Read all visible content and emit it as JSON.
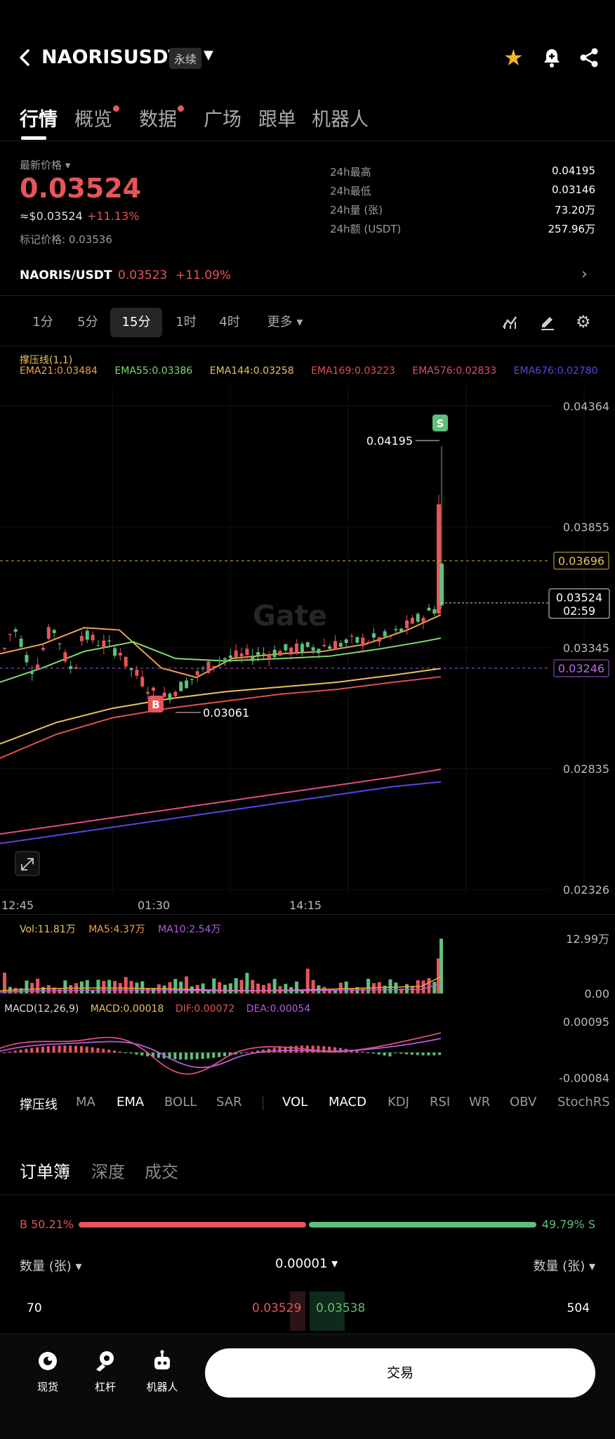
{
  "header": {
    "pair": "NAORISUSDT",
    "type_badge": "永续"
  },
  "tabs": [
    {
      "label": "行情"
    },
    {
      "label": "概览"
    },
    {
      "label": "数据"
    },
    {
      "label": "广场"
    },
    {
      "label": "跟单"
    },
    {
      "label": "机器人"
    }
  ],
  "ticker": {
    "latest_label": "最新价格",
    "last_price": "0.03524",
    "usd_value": "≈$0.03524",
    "change": "+11.13%",
    "mark_label": "标记价格:",
    "mark_price": "0.03536",
    "stats": [
      {
        "k": "24h最高",
        "v": "0.04195"
      },
      {
        "k": "24h最低",
        "v": "0.03146"
      },
      {
        "k": "24h量 (张)",
        "v": "73.20万"
      },
      {
        "k": "24h额 (USDT)",
        "v": "257.96万"
      }
    ],
    "spot_pair": "NAORIS/USDT",
    "spot_price": "0.03523",
    "spot_change": "+11.09%"
  },
  "timeframes": [
    "1分",
    "5分",
    "15分",
    "1时",
    "4时",
    "更多"
  ],
  "active_timeframe": "15分",
  "indicator_header": {
    "name": "撑压线(1,1)",
    "emas": [
      {
        "label": "EMA21:0.03484",
        "color": "#f0a24a"
      },
      {
        "label": "EMA55:0.03386",
        "color": "#7fdc6f"
      },
      {
        "label": "EMA144:0.03258",
        "color": "#e8c25a"
      },
      {
        "label": "EMA169:0.03223",
        "color": "#e0504e"
      },
      {
        "label": "EMA576:0.02833",
        "color": "#e34b7f"
      },
      {
        "label": "EMA676:0.02780",
        "color": "#5a44e6"
      }
    ]
  },
  "chart_data": {
    "type": "candlestick",
    "y_axis_ticks": [
      "0.04364",
      "0.03855",
      "0.03345",
      "0.02835",
      "0.02326"
    ],
    "x_axis_ticks": [
      "12:45",
      "01:30",
      "14:15"
    ],
    "high_label": "0.04195",
    "low_label": "0.03061",
    "current_price": "0.03524",
    "countdown": "02:59",
    "price_line_yellow": "0.03696",
    "price_line_purple": "0.03246",
    "buy_marker": "B",
    "sell_marker": "S",
    "ema_colors": {
      "ema21": "#f0a24a",
      "ema55": "#7fdc6f",
      "ema144": "#e8c25a",
      "ema169": "#e0504e",
      "ema576": "#e34b7f",
      "ema676": "#5a44e6"
    },
    "up_color": "#e5555a",
    "down_color": "#5fbf7d"
  },
  "volume": {
    "vol_label": "Vol:11.81万",
    "ma5_label": "MA5:4.37万",
    "ma10_label": "MA10:2.54万",
    "axis_top": "12.99万",
    "axis_bottom": "0.00"
  },
  "macd": {
    "label": "MACD(12,26,9)",
    "macd_val": "MACD:0.00018",
    "dif": "DIF:0.00072",
    "dea": "DEA:0.00054",
    "axis_top": "0.00095",
    "axis_bottom": "-0.00084"
  },
  "indicator_tabs": [
    {
      "label": "撑压线",
      "on": true
    },
    {
      "label": "MA",
      "on": false
    },
    {
      "label": "EMA",
      "on": true
    },
    {
      "label": "BOLL",
      "on": false
    },
    {
      "label": "SAR",
      "on": false
    },
    {
      "label": "VOL",
      "on": true
    },
    {
      "label": "MACD",
      "on": true
    },
    {
      "label": "KDJ",
      "on": false
    },
    {
      "label": "RSI",
      "on": false
    },
    {
      "label": "WR",
      "on": false
    },
    {
      "label": "OBV",
      "on": false
    },
    {
      "label": "StochRS",
      "on": false
    }
  ],
  "orderbook": {
    "tabs": [
      "订单簿",
      "深度",
      "成交"
    ],
    "buy_pct": "B 50.21%",
    "sell_pct": "49.79% S",
    "buy_fraction": 0.5021,
    "qty_left": "数量 (张)",
    "precision": "0.00001",
    "qty_right": "数量 (张)",
    "row": {
      "bid_qty": "70",
      "bid_price": "0.03529",
      "ask_price": "0.03538",
      "ask_qty": "504"
    }
  },
  "bottom_nav": [
    {
      "label": "现货",
      "icon": "spot-icon"
    },
    {
      "label": "杠杆",
      "icon": "margin-icon"
    },
    {
      "label": "机器人",
      "icon": "robot-icon"
    }
  ],
  "trade_button": "交易",
  "watermark": "Gate"
}
